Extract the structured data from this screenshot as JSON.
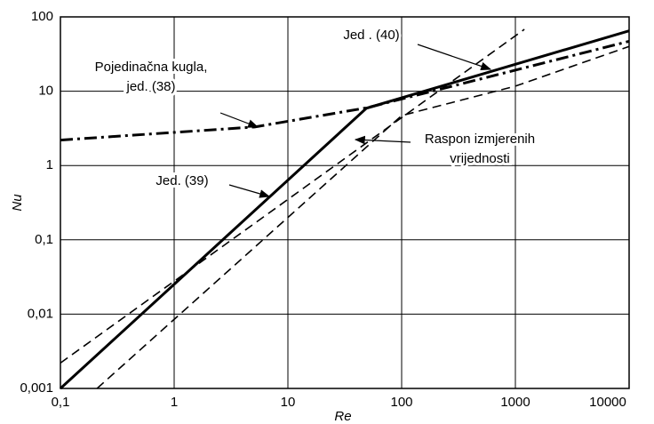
{
  "chart_data": {
    "type": "line",
    "x_label": "Re",
    "y_label": "Nu",
    "xscale": "log",
    "yscale": "log",
    "grid": true,
    "xlim": [
      0.1,
      10000
    ],
    "ylim": [
      0.001,
      100
    ],
    "xticks": [
      {
        "value": 0.1,
        "label": "0,1"
      },
      1,
      10,
      100,
      1000,
      10000
    ],
    "yticks": [
      {
        "value": 0.001,
        "label": "0,001"
      },
      {
        "value": 0.01,
        "label": "0,01"
      },
      {
        "value": 0.1,
        "label": "0,1"
      },
      1,
      10,
      100
    ],
    "series": [
      {
        "color": "#000000",
        "dash": "solid",
        "x": [
          0.1,
          49,
          10000
        ],
        "values": [
          0.001,
          5.9,
          65
        ]
      },
      {
        "color": "#000000",
        "dash": "dash-dot",
        "x": [
          0.1,
          5.1,
          50,
          10000
        ],
        "values": [
          2.2,
          3.3,
          6,
          47
        ]
      },
      {
        "color": "#000000",
        "dash": "dashed",
        "x": [
          0.1,
          1200
        ],
        "values": [
          0.0022,
          68
        ]
      },
      {
        "color": "#000000",
        "dash": "dashed",
        "x": [
          0.21,
          10,
          100,
          1000,
          10000
        ],
        "values": [
          0.001,
          0.2,
          4.7,
          11.7,
          40
        ]
      }
    ],
    "annotations": [
      {
        "lines": [
          "Jed . (40)"
        ]
      },
      {
        "lines": [
          "Pojedinačna kugla,",
          "jed. (38)"
        ]
      },
      {
        "lines": [
          "Raspon izmjerenih",
          "vrijednosti"
        ]
      },
      {
        "lines": [
          "Jed. (39)"
        ]
      }
    ]
  }
}
